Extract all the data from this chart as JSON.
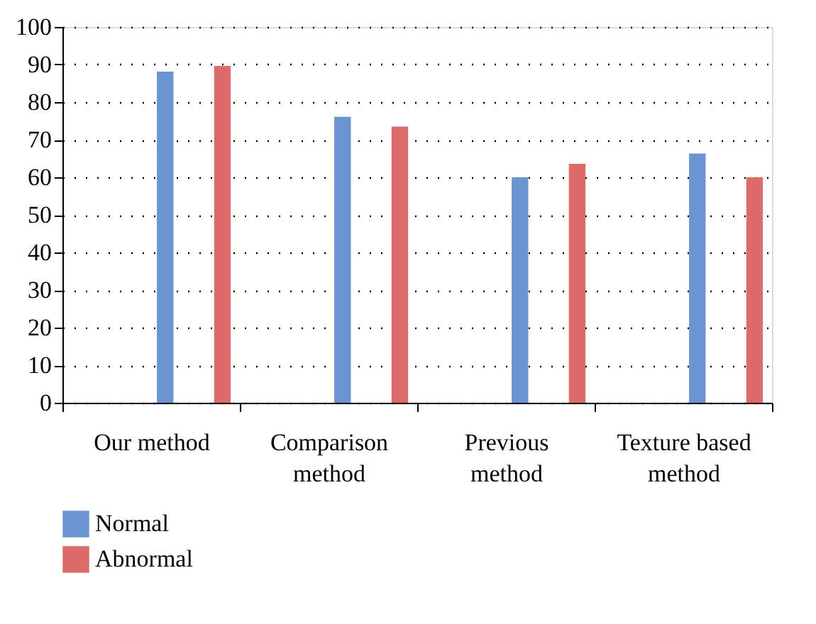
{
  "chart_data": {
    "type": "bar",
    "categories": [
      "Our method",
      "Comparison method",
      "Previous method",
      "Texture based method"
    ],
    "series": [
      {
        "name": "Normal",
        "color": "#6b95d0",
        "values": [
          88.1,
          76.1,
          60,
          66.3
        ]
      },
      {
        "name": "Abnormal",
        "color": "#dc6b69",
        "values": [
          89.6,
          73.5,
          63.6,
          60
        ]
      }
    ],
    "ylim": [
      0,
      100
    ],
    "yticks": [
      0,
      10,
      20,
      30,
      40,
      50,
      60,
      70,
      80,
      90,
      100
    ],
    "grid": "y",
    "legend": "bottom left"
  }
}
